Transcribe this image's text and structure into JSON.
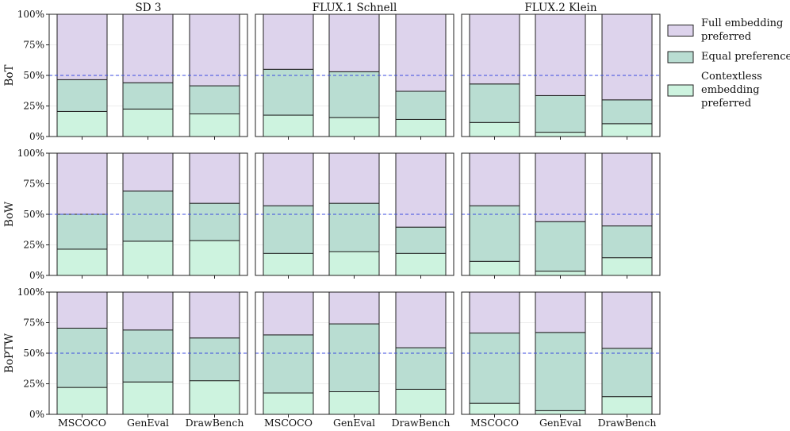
{
  "chart_data": {
    "type": "bar",
    "stacked": true,
    "columns": [
      "SD 3",
      "FLUX.1 Schnell",
      "FLUX.2 Klein"
    ],
    "rows": [
      "BoT",
      "BoW",
      "BoPTW"
    ],
    "categories": [
      "MSCOCO",
      "GenEval",
      "DrawBench"
    ],
    "y_tick_labels": [
      "0%",
      "25%",
      "50%",
      "75%",
      "100%"
    ],
    "ylim": [
      0,
      100
    ],
    "reference_line": 50,
    "grid": true,
    "legend_position": "right",
    "legend": [
      {
        "label_lines": [
          "Full embedding",
          "preferred"
        ],
        "color": "#ddd3ec"
      },
      {
        "label_lines": [
          "Equal preference"
        ],
        "color": "#b9ddd2"
      },
      {
        "label_lines": [
          "Contextless",
          "embedding",
          "preferred"
        ],
        "color": "#cdf3df"
      }
    ],
    "colors": {
      "contextless": "#cdf3df",
      "equal": "#b9ddd2",
      "full": "#ddd3ec",
      "reference_line": "#3b4be0"
    },
    "panels": [
      {
        "row": "BoT",
        "column": "SD 3",
        "contextless": [
          20.5,
          22.5,
          18.5
        ],
        "equal": [
          26,
          21.5,
          23
        ]
      },
      {
        "row": "BoT",
        "column": "FLUX.1 Schnell",
        "contextless": [
          17.5,
          15.5,
          14
        ],
        "equal": [
          37.5,
          37.5,
          23
        ]
      },
      {
        "row": "BoT",
        "column": "FLUX.2 Klein",
        "contextless": [
          11.5,
          3.5,
          10.5
        ],
        "equal": [
          31.5,
          30,
          19.5
        ]
      },
      {
        "row": "BoW",
        "column": "SD 3",
        "contextless": [
          21.5,
          28,
          28.5
        ],
        "equal": [
          28.5,
          41,
          30.5
        ]
      },
      {
        "row": "BoW",
        "column": "FLUX.1 Schnell",
        "contextless": [
          18,
          19.5,
          18
        ],
        "equal": [
          39,
          39.5,
          21.5
        ]
      },
      {
        "row": "BoW",
        "column": "FLUX.2 Klein",
        "contextless": [
          11.5,
          3.5,
          14.5
        ],
        "equal": [
          45.5,
          40.5,
          26
        ]
      },
      {
        "row": "BoPTW",
        "column": "SD 3",
        "contextless": [
          22,
          26.5,
          27.5
        ],
        "equal": [
          48.5,
          42.5,
          35
        ]
      },
      {
        "row": "BoPTW",
        "column": "FLUX.1 Schnell",
        "contextless": [
          17.5,
          18.5,
          20.5
        ],
        "equal": [
          47.5,
          55.5,
          34
        ]
      },
      {
        "row": "BoPTW",
        "column": "FLUX.2 Klein",
        "contextless": [
          9,
          3,
          14.5
        ],
        "equal": [
          57.5,
          64,
          39.5
        ]
      }
    ]
  }
}
